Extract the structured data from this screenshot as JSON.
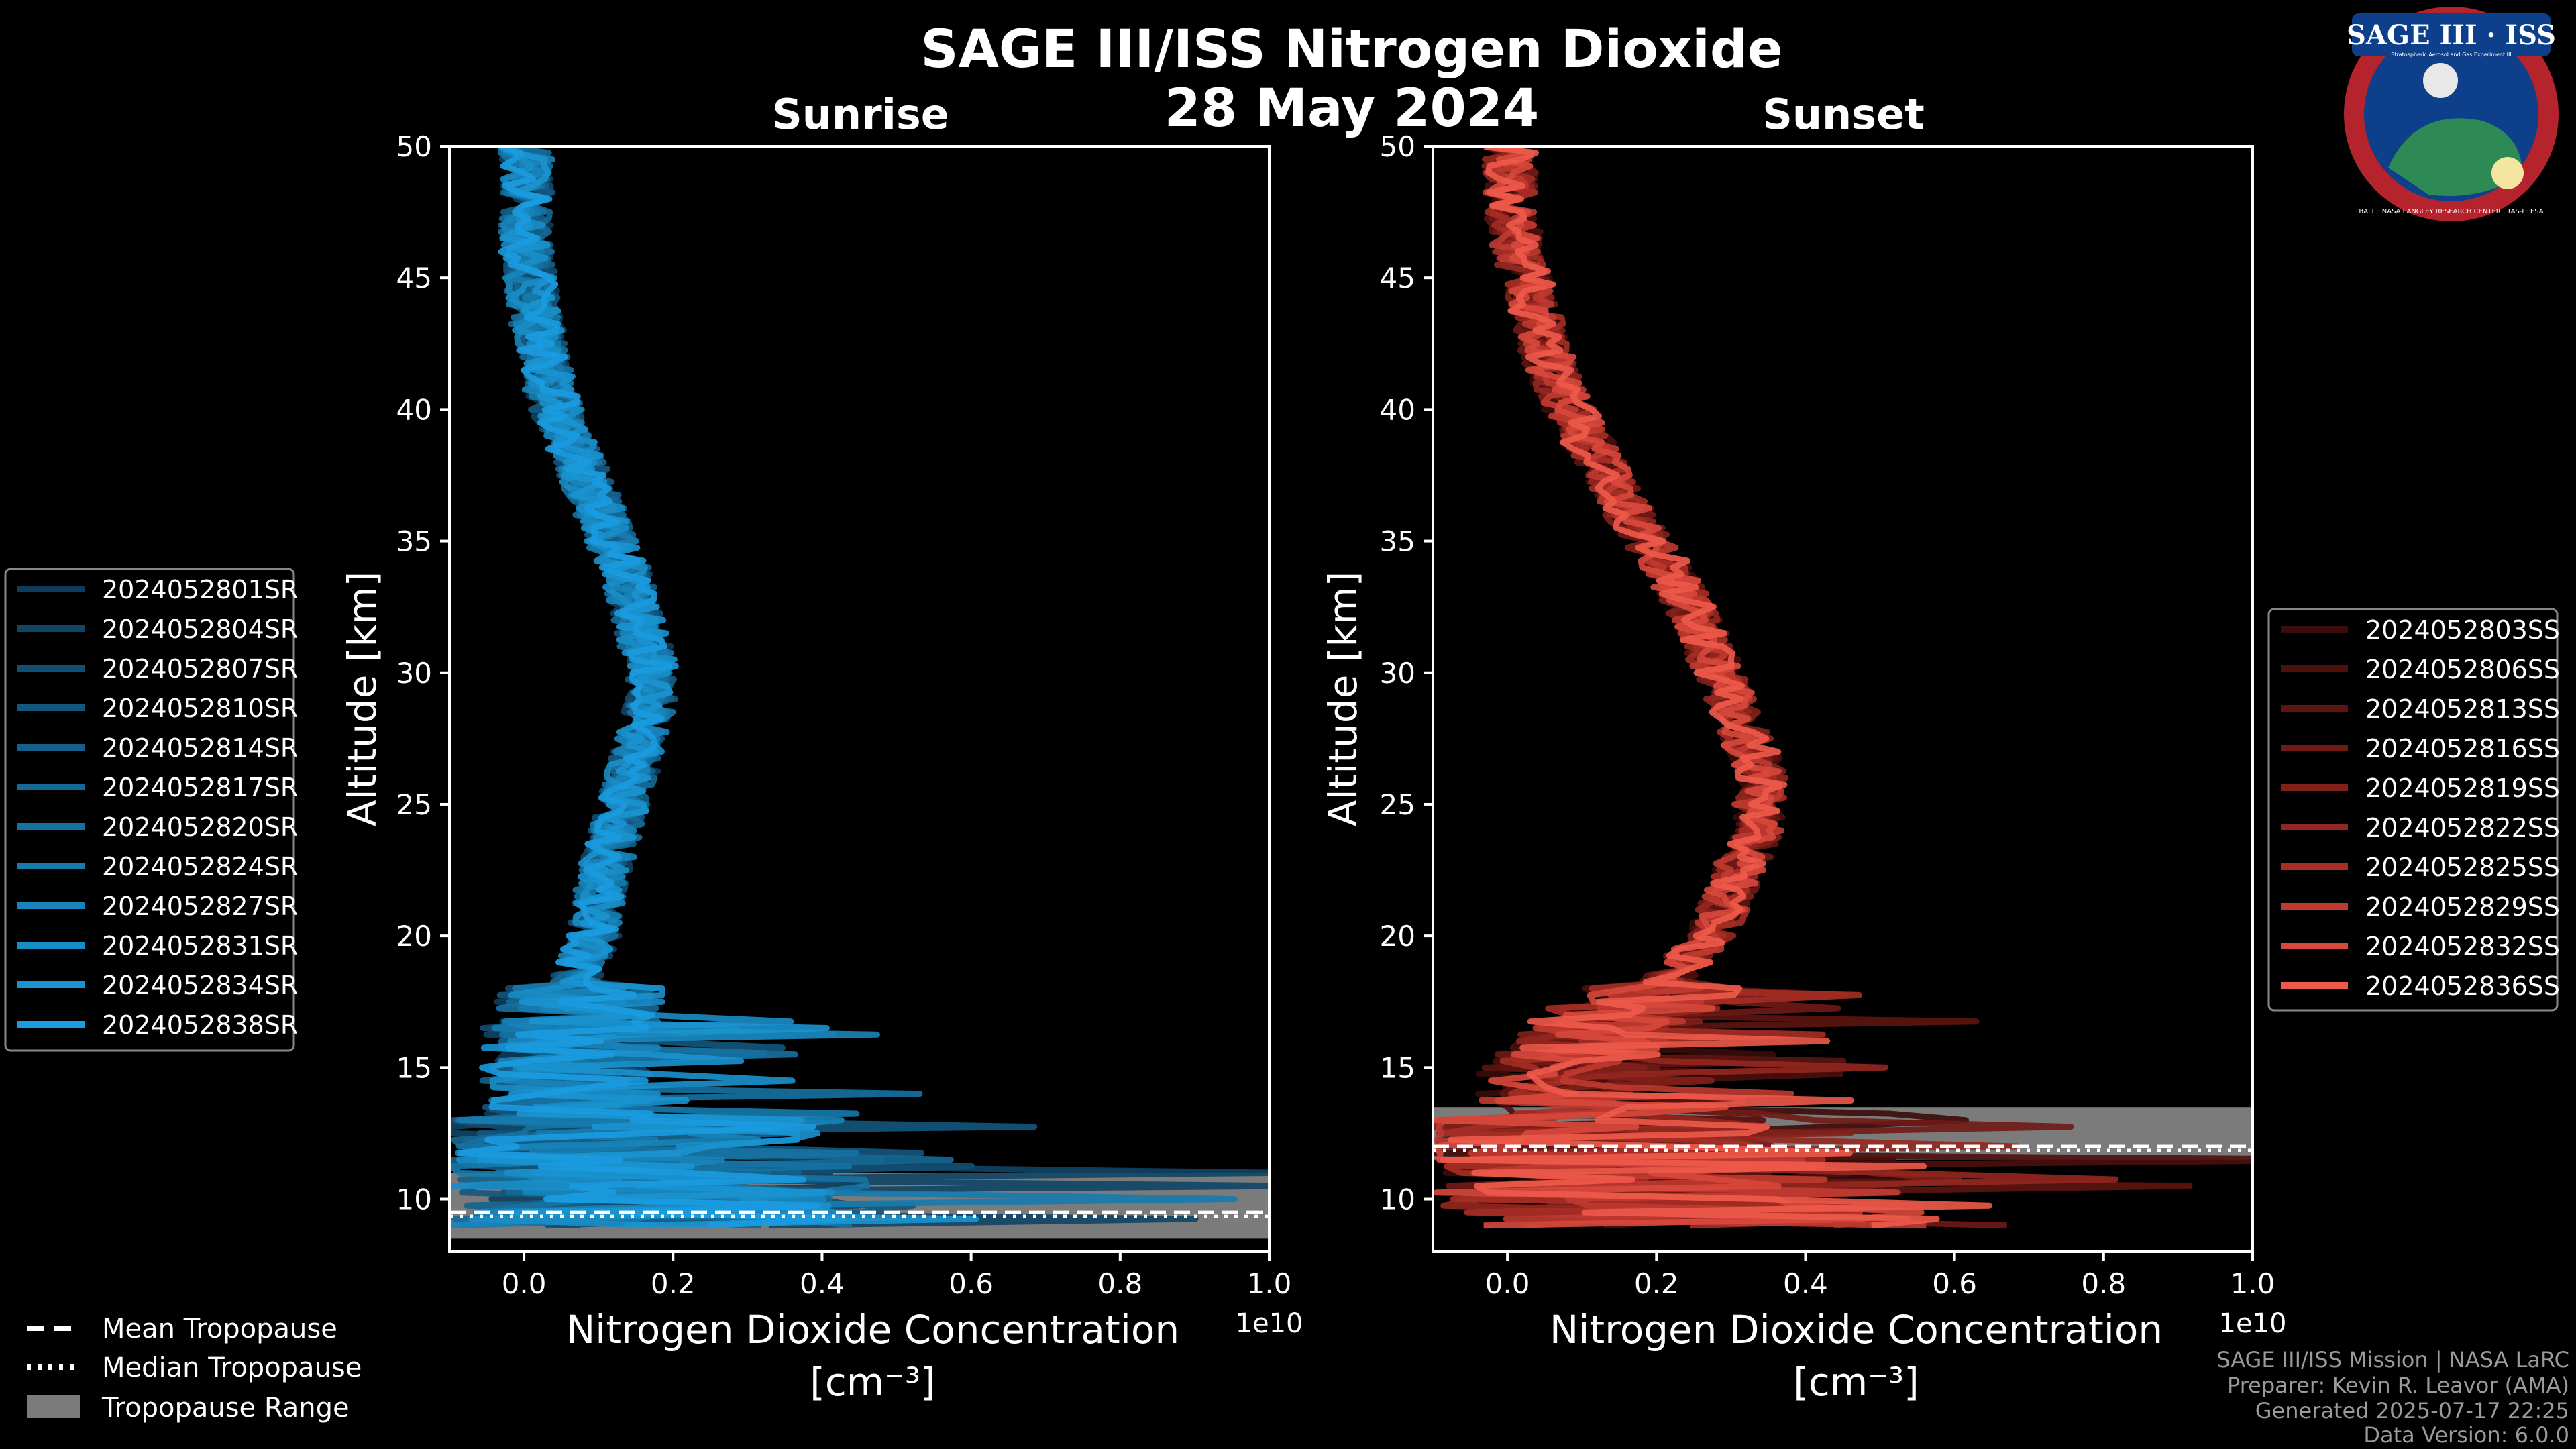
{
  "title": "SAGE III/ISS Nitrogen Dioxide",
  "date": "28 May 2024",
  "logo": {
    "text": "SAGE III · ISS",
    "subtitle": "Stratospheric Aerosol and Gas Experiment III",
    "ring_text": "BALL · NASA LANGLEY RESEARCH CENTER · TAS-I · ESA"
  },
  "chart_data": [
    {
      "type": "line",
      "panel": "sunrise",
      "title": "Sunrise",
      "xlabel": "Nitrogen Dioxide Concentration",
      "xlabel_unit": "[cm⁻³]",
      "ylabel": "Altitude [km]",
      "x_scale_label": "1e10",
      "xlim": [
        -0.1,
        1.0
      ],
      "ylim": [
        8,
        50
      ],
      "xticks": [
        "0.0",
        "0.2",
        "0.4",
        "0.6",
        "0.8",
        "1.0"
      ],
      "xtick_values": [
        0.0,
        0.2,
        0.4,
        0.6,
        0.8,
        1.0
      ],
      "yticks": [
        "10",
        "15",
        "20",
        "25",
        "30",
        "35",
        "40",
        "45",
        "50"
      ],
      "ytick_values": [
        10,
        15,
        20,
        25,
        30,
        35,
        40,
        45,
        50
      ],
      "tropopause": {
        "mean": 9.5,
        "median": 9.5,
        "range": [
          8.5,
          11.0
        ]
      },
      "mean_profile": {
        "altitude": [
          50,
          48,
          46,
          44,
          42,
          40,
          38,
          36,
          34,
          32,
          30,
          28,
          26,
          24,
          22,
          20,
          18,
          16,
          14,
          12,
          10,
          9
        ],
        "value": [
          0.0,
          0.0,
          0.0,
          0.01,
          0.02,
          0.04,
          0.07,
          0.1,
          0.13,
          0.15,
          0.17,
          0.16,
          0.14,
          0.12,
          0.1,
          0.09,
          0.06,
          0.05,
          0.05,
          0.06,
          0.1,
          0.1
        ]
      },
      "color": "#1a8fd6",
      "legend_location": "left",
      "series": [
        {
          "name": "2024052801SR",
          "color": "#0f3c5c"
        },
        {
          "name": "2024052804SR",
          "color": "#104566"
        },
        {
          "name": "2024052807SR",
          "color": "#124e72"
        },
        {
          "name": "2024052810SR",
          "color": "#13577e"
        },
        {
          "name": "2024052814SR",
          "color": "#14608a"
        },
        {
          "name": "2024052817SR",
          "color": "#156996"
        },
        {
          "name": "2024052820SR",
          "color": "#1672a2"
        },
        {
          "name": "2024052824SR",
          "color": "#177bae"
        },
        {
          "name": "2024052827SR",
          "color": "#1884ba"
        },
        {
          "name": "2024052831SR",
          "color": "#198dc6"
        },
        {
          "name": "2024052834SR",
          "color": "#1a94d0"
        },
        {
          "name": "2024052838SR",
          "color": "#1b9be0"
        }
      ]
    },
    {
      "type": "line",
      "panel": "sunset",
      "title": "Sunset",
      "xlabel": "Nitrogen Dioxide Concentration",
      "xlabel_unit": "[cm⁻³]",
      "ylabel": "Altitude [km]",
      "x_scale_label": "1e10",
      "xlim": [
        -0.1,
        1.0
      ],
      "ylim": [
        8,
        50
      ],
      "xticks": [
        "0.0",
        "0.2",
        "0.4",
        "0.6",
        "0.8",
        "1.0"
      ],
      "xtick_values": [
        0.0,
        0.2,
        0.4,
        0.6,
        0.8,
        1.0
      ],
      "yticks": [
        "10",
        "15",
        "20",
        "25",
        "30",
        "35",
        "40",
        "45",
        "50"
      ],
      "ytick_values": [
        10,
        15,
        20,
        25,
        30,
        35,
        40,
        45,
        50
      ],
      "tropopause": {
        "mean": 12.0,
        "median": 12.0,
        "range": [
          11.5,
          13.5
        ]
      },
      "mean_profile": {
        "altitude": [
          50,
          48,
          46,
          44,
          42,
          40,
          38,
          36,
          34,
          32,
          30,
          28,
          26,
          24,
          22,
          20,
          18,
          16,
          14,
          12,
          10
        ],
        "value": [
          0.0,
          0.0,
          0.01,
          0.03,
          0.05,
          0.08,
          0.12,
          0.16,
          0.21,
          0.25,
          0.28,
          0.31,
          0.34,
          0.33,
          0.3,
          0.27,
          0.2,
          0.1,
          0.05,
          0.1,
          0.2
        ]
      },
      "color": "#e85a4a",
      "legend_location": "right",
      "series": [
        {
          "name": "2024052803SS",
          "color": "#3a0c0a"
        },
        {
          "name": "2024052806SS",
          "color": "#4c100d"
        },
        {
          "name": "2024052813SS",
          "color": "#5e1511"
        },
        {
          "name": "2024052816SS",
          "color": "#701a15"
        },
        {
          "name": "2024052819SS",
          "color": "#82201a"
        },
        {
          "name": "2024052822SS",
          "color": "#94271f"
        },
        {
          "name": "2024052825SS",
          "color": "#a62e25"
        },
        {
          "name": "2024052829SS",
          "color": "#c03a30"
        },
        {
          "name": "2024052832SS",
          "color": "#d8483c"
        },
        {
          "name": "2024052836SS",
          "color": "#ee5a4a"
        }
      ]
    }
  ],
  "tropopause_legend": [
    {
      "label": "Mean Tropopause",
      "style": "dashed"
    },
    {
      "label": "Median Tropopause",
      "style": "dotted"
    },
    {
      "label": "Tropopause Range",
      "style": "patch"
    }
  ],
  "credits": [
    "SAGE III/ISS Mission | NASA LaRC",
    "Preparer: Kevin R. Leavor (AMA)",
    "Generated 2025-07-17 22:25",
    "Data Version: 6.0.0"
  ]
}
